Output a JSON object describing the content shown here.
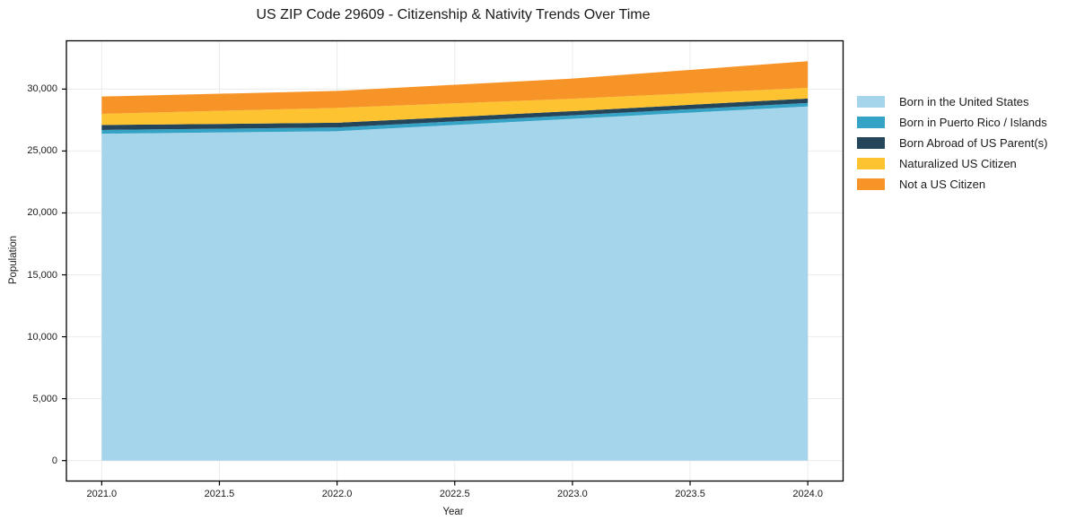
{
  "figure": {
    "background": "#ffffff",
    "grid_color": "#ebebeb",
    "spine_color": "#000000",
    "text_color": "#1a1a1a"
  },
  "chart_data": {
    "type": "area",
    "stacked": true,
    "title": "US ZIP Code 29609 - Citizenship & Nativity Trends Over Time",
    "xlabel": "Year",
    "ylabel": "Population",
    "x": [
      2021,
      2022,
      2023,
      2024
    ],
    "series": [
      {
        "name": "Born in the United States",
        "color": "#a5d5ea",
        "values": [
          26400,
          26600,
          27600,
          28600
        ]
      },
      {
        "name": "Born in Puerto Rico / Islands",
        "color": "#35a3c6",
        "values": [
          300,
          300,
          280,
          280
        ]
      },
      {
        "name": "Born Abroad of US Parent(s)",
        "color": "#25465a",
        "values": [
          400,
          380,
          340,
          360
        ]
      },
      {
        "name": "Naturalized US Citizen",
        "color": "#fdc330",
        "values": [
          900,
          1200,
          1000,
          860
        ]
      },
      {
        "name": "Not a US Citizen",
        "color": "#f79428",
        "values": [
          1400,
          1370,
          1630,
          2150
        ]
      }
    ],
    "stacked_totals": [
      29400,
      29850,
      30850,
      32250
    ],
    "x_ticks": [
      "2021.0",
      "2021.5",
      "2022.0",
      "2022.5",
      "2023.0",
      "2023.5",
      "2024.0"
    ],
    "x_tick_values": [
      2021,
      2021.5,
      2022,
      2022.5,
      2023,
      2023.5,
      2024
    ],
    "y_ticks": [
      "0",
      "5,000",
      "10,000",
      "15,000",
      "20,000",
      "25,000",
      "30,000"
    ],
    "y_tick_values": [
      0,
      5000,
      10000,
      15000,
      20000,
      25000,
      30000
    ],
    "xlim": [
      2020.85,
      2024.15
    ],
    "ylim": [
      -1650,
      33900
    ],
    "grid": true,
    "legend_position": "right",
    "legend_frame": false
  }
}
